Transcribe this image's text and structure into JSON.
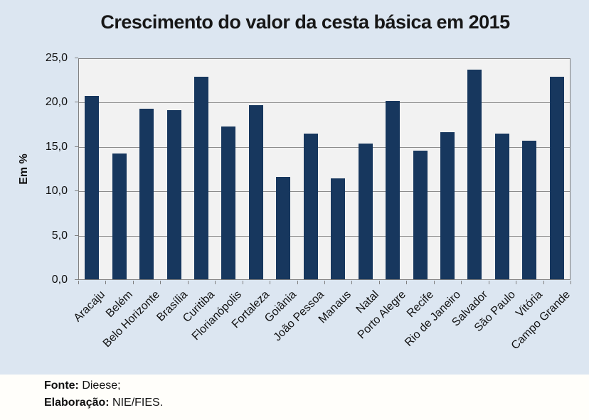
{
  "chart": {
    "title": "Crescimento do valor da cesta básica em 2015",
    "y_axis_label": "Em %"
  },
  "chart_data": {
    "type": "bar",
    "title": "Crescimento do valor da cesta básica em 2015",
    "xlabel": "",
    "ylabel": "Em %",
    "ylim": [
      0,
      25
    ],
    "ytick_step": 5,
    "ytick_labels": [
      "0,0",
      "5,0",
      "10,0",
      "15,0",
      "20,0",
      "25,0"
    ],
    "grid": true,
    "legend_position": "none",
    "categories": [
      "Aracaju",
      "Belém",
      "Belo Horizonte",
      "Brasília",
      "Curitiba",
      "Florianópolis",
      "Fortaleza",
      "Goiânia",
      "João Pessoa",
      "Manaus",
      "Natal",
      "Porto Alegre",
      "Recife",
      "Rio de Janeiro",
      "Salvador",
      "São Paulo",
      "Vitória",
      "Campo Grande"
    ],
    "values": [
      20.7,
      14.2,
      19.2,
      19.1,
      22.8,
      17.2,
      19.6,
      11.5,
      16.4,
      11.4,
      15.3,
      20.1,
      14.5,
      16.6,
      23.6,
      16.4,
      15.6,
      22.8
    ],
    "colors": {
      "bar": "#17375e",
      "plot_background": "#f2f2f2",
      "outer_background": "#dce6f1",
      "gridline": "#8c8c8c",
      "axis_border": "#7f7f7f",
      "text": "#111111"
    }
  },
  "footer": {
    "source_label": "Fonte:",
    "source_value": " Dieese;",
    "elaboration_label": "Elaboração:",
    "elaboration_value": " NIE/FIES."
  }
}
